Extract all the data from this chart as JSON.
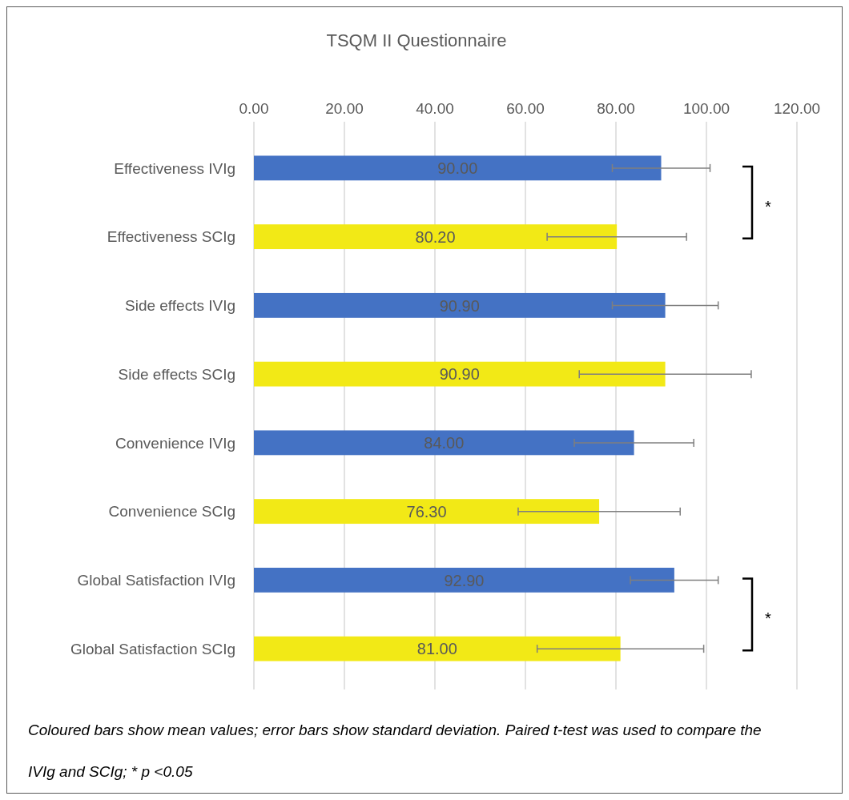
{
  "chart_data": {
    "type": "bar",
    "orientation": "horizontal",
    "title": "TSQM II Questionnaire",
    "categories": [
      "Effectiveness IVIg",
      "Effectiveness SCIg",
      "Side effects IVIg",
      "Side effects SCIg",
      "Convenience IVIg",
      "Convenience SCIg",
      "Global Satisfaction IVIg",
      "Global Satisfaction SCIg"
    ],
    "values": [
      90.0,
      80.2,
      90.9,
      90.9,
      84.0,
      76.3,
      92.9,
      81.0
    ],
    "colors": [
      "#4472c4",
      "#f2e916",
      "#4472c4",
      "#f2e916",
      "#4472c4",
      "#f2e916",
      "#4472c4",
      "#f2e916"
    ],
    "errors": [
      10.8,
      15.4,
      11.7,
      19.0,
      13.2,
      17.9,
      9.7,
      18.4
    ],
    "xlim": [
      0,
      120
    ],
    "xticks": [
      {
        "value": 0,
        "label": "0.00"
      },
      {
        "value": 20,
        "label": "20.00"
      },
      {
        "value": 40,
        "label": "40.00"
      },
      {
        "value": 60,
        "label": "60.00"
      },
      {
        "value": 80,
        "label": "80.00"
      },
      {
        "value": 100,
        "label": "100.00"
      },
      {
        "value": 120,
        "label": "120.00"
      }
    ],
    "value_labels": [
      "90.00",
      "80.20",
      "90.90",
      "90.90",
      "84.00",
      "76.30",
      "92.90",
      "81.00"
    ],
    "grid": "x",
    "annotations": [
      "*",
      "*",
      "Coloured bars show mean values; error bars show standard deviation. Paired t-test was used to compare the IVIg and SCIg; * p <0.05"
    ]
  }
}
